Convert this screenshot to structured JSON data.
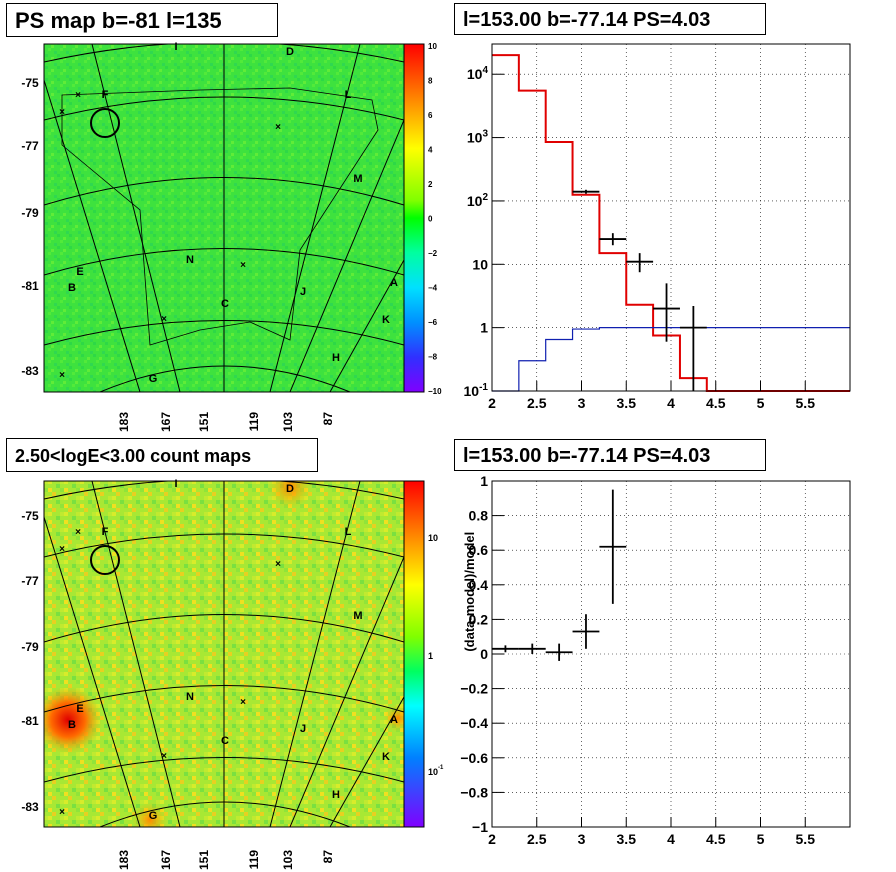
{
  "titles": {
    "map_top": "PS map b=-81 l=135",
    "spec_top": "l=153.00 b=-77.14 PS=4.03",
    "map_bottom": "2.50<logE<3.00 count maps",
    "spec_bottom": "l=153.00 b=-77.14 PS=4.03"
  },
  "maps": {
    "lat_labels": [
      "-75",
      "-77",
      "-79",
      "-81",
      "-83"
    ],
    "lon_labels": [
      "183",
      "167",
      "151",
      "119",
      "103",
      "87"
    ],
    "source_labels": [
      "I",
      "D",
      "F",
      "L",
      "M",
      "E",
      "B",
      "N",
      "C",
      "J",
      "A",
      "K",
      "H",
      "G"
    ],
    "colorbar_top_labels": [
      "10",
      "8",
      "6",
      "4",
      "2",
      "0",
      "−2",
      "−4",
      "−6",
      "−8",
      "−10"
    ],
    "colorbar_bottom_labels": [
      "10",
      "1",
      "10^-1"
    ]
  },
  "chart_data": [
    {
      "type": "line",
      "title": "l=153.00 b=-77.14 PS=4.03",
      "xlabel": "",
      "ylabel": "",
      "xlim": [
        2,
        6
      ],
      "ylim": [
        0.1,
        30000
      ],
      "yscale": "log",
      "grid": true,
      "x_ticks": [
        "2",
        "2.5",
        "3",
        "3.5",
        "4",
        "4.5",
        "5",
        "5.5"
      ],
      "y_ticks": [
        "10^-1",
        "1",
        "10",
        "10^2",
        "10^3",
        "10^4"
      ],
      "series": [
        {
          "style": "histogram",
          "color": "#e00000",
          "bin_edges": [
            2.0,
            2.3,
            2.6,
            2.9,
            3.2,
            3.5,
            3.8,
            4.1,
            4.4,
            6.0
          ],
          "values": [
            20000,
            5500,
            850,
            125,
            15,
            2.3,
            0.75,
            0.16,
            0.1
          ]
        },
        {
          "style": "histogram",
          "color": "#1020b0",
          "bin_edges": [
            2.0,
            2.3,
            2.6,
            2.9,
            3.2,
            6.0
          ],
          "values": [
            0.05,
            0.3,
            0.65,
            0.95,
            1.0
          ]
        },
        {
          "style": "errorbars",
          "color": "#000000",
          "points": [
            {
              "x": 3.05,
              "y": 140,
              "xerr": 0.15,
              "ylo": 130,
              "yhi": 150
            },
            {
              "x": 3.35,
              "y": 25,
              "xerr": 0.15,
              "ylo": 20,
              "yhi": 31
            },
            {
              "x": 3.65,
              "y": 11,
              "xerr": 0.15,
              "ylo": 7.5,
              "yhi": 15
            },
            {
              "x": 3.95,
              "y": 2,
              "xerr": 0.15,
              "ylo": 0.6,
              "yhi": 5
            },
            {
              "x": 4.25,
              "y": 1,
              "xerr": 0.15,
              "ylo": 0.1,
              "yhi": 2.2
            }
          ]
        }
      ]
    },
    {
      "type": "scatter",
      "title": "l=153.00 b=-77.14 PS=4.03",
      "xlabel": "",
      "ylabel": "(data-model)/model",
      "xlim": [
        2,
        6
      ],
      "ylim": [
        -1,
        1
      ],
      "grid": true,
      "x_ticks": [
        "2",
        "2.5",
        "3",
        "3.5",
        "4",
        "4.5",
        "5",
        "5.5"
      ],
      "y_ticks": [
        "−1",
        "−0.8",
        "−0.6",
        "−0.4",
        "−0.2",
        "0",
        "0.2",
        "0.4",
        "0.6",
        "0.8",
        "1"
      ],
      "series": [
        {
          "style": "errorbars",
          "color": "#000000",
          "points": [
            {
              "x": 2.15,
              "y": 0.03,
              "xerr": 0.15,
              "ylo": 0.01,
              "yhi": 0.05
            },
            {
              "x": 2.45,
              "y": 0.03,
              "xerr": 0.15,
              "ylo": 0.0,
              "yhi": 0.06
            },
            {
              "x": 2.75,
              "y": 0.01,
              "xerr": 0.15,
              "ylo": -0.04,
              "yhi": 0.06
            },
            {
              "x": 3.05,
              "y": 0.13,
              "xerr": 0.15,
              "ylo": 0.03,
              "yhi": 0.23
            },
            {
              "x": 3.35,
              "y": 0.62,
              "xerr": 0.15,
              "ylo": 0.29,
              "yhi": 0.95
            }
          ]
        }
      ]
    }
  ]
}
